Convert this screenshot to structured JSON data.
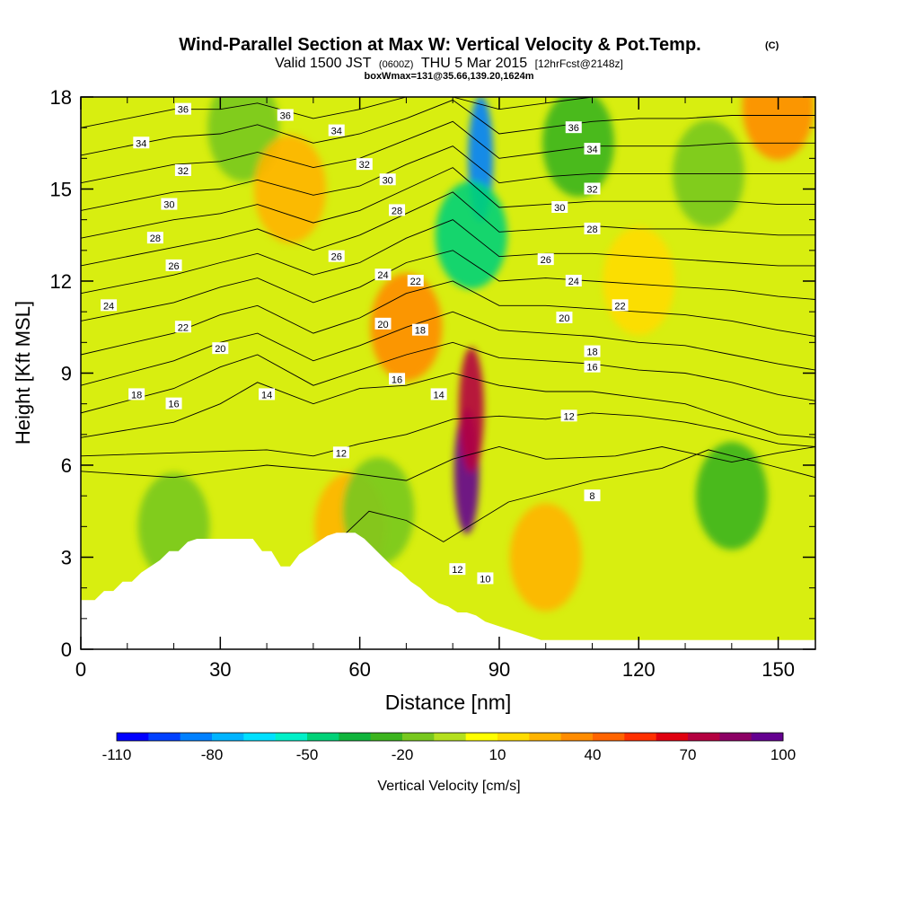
{
  "header": {
    "title": "Wind-Parallel Section at Max W: Vertical Velocity & Pot.Temp.",
    "copyright": "(C)",
    "valid_prefix": "Valid 1500 JST",
    "valid_utc": "(0600Z)",
    "valid_date": "THU 5 Mar 2015",
    "forecast": "[12hrFcst@2148z]",
    "box_info": "boxWmax=131@35.66,139.20,1624m"
  },
  "chart_data": {
    "type": "heatmap",
    "xlabel": "Distance [nm]",
    "ylabel": "Height [Kft MSL]",
    "xlim": [
      0,
      158
    ],
    "ylim": [
      0,
      18
    ],
    "x_ticks": [
      "0",
      "30",
      "60",
      "90",
      "120",
      "150"
    ],
    "y_ticks": [
      "0",
      "3",
      "6",
      "9",
      "12",
      "15",
      "18"
    ],
    "grid": false,
    "colorbar": {
      "label": "Vertical Velocity [cm/s]",
      "tick_labels": [
        "-110",
        "-80",
        "-50",
        "-20",
        "10",
        "40",
        "70",
        "100"
      ],
      "colors": [
        "#0000ff",
        "#0040ff",
        "#0080ff",
        "#00b4ff",
        "#00e0ff",
        "#00f0c8",
        "#00d278",
        "#10b43c",
        "#3cb41e",
        "#78c81e",
        "#b4e01e",
        "#ffff00",
        "#ffdc00",
        "#ffb400",
        "#ff8c00",
        "#ff6400",
        "#ff3000",
        "#e00010",
        "#b40040",
        "#8c0064",
        "#640090"
      ]
    },
    "velocity_field": [
      {
        "x": 83,
        "y": 5.8,
        "w": 120
      },
      {
        "x": 84,
        "y": 7.8,
        "w": 70
      },
      {
        "x": 70,
        "y": 10.5,
        "w": 32
      },
      {
        "x": 35,
        "y": 17.0,
        "w": -20
      },
      {
        "x": 86,
        "y": 16.0,
        "w": -90
      },
      {
        "x": 84,
        "y": 13.5,
        "w": -45
      },
      {
        "x": 107,
        "y": 16.5,
        "w": -25
      },
      {
        "x": 140,
        "y": 5.0,
        "w": -25
      },
      {
        "x": 135,
        "y": 15.5,
        "w": -15
      },
      {
        "x": 45,
        "y": 15.0,
        "w": 25
      },
      {
        "x": 100,
        "y": 3.0,
        "w": 25
      },
      {
        "x": 58,
        "y": 4.0,
        "w": 20
      },
      {
        "x": 64,
        "y": 4.5,
        "w": -15
      },
      {
        "x": 20,
        "y": 4.0,
        "w": -15
      },
      {
        "x": 150,
        "y": 17.7,
        "w": 30
      },
      {
        "x": 120,
        "y": 12.0,
        "w": 10
      }
    ],
    "theta_contours": [
      {
        "value": 8,
        "x": [
          53,
          62,
          70,
          78,
          92,
          110,
          125,
          135,
          148,
          158
        ],
        "y": [
          3.2,
          4.5,
          4.2,
          3.5,
          4.8,
          5.5,
          5.9,
          6.5,
          6.0,
          5.6
        ],
        "label": "8",
        "label_at": [
          110,
          5.0
        ]
      },
      {
        "value": 10,
        "x": [
          0,
          20,
          40,
          55,
          70,
          80,
          90,
          100,
          115,
          125,
          140,
          150,
          158
        ],
        "y": [
          5.8,
          5.6,
          6.0,
          5.8,
          5.5,
          6.2,
          6.6,
          6.2,
          6.3,
          6.6,
          6.1,
          6.4,
          6.6
        ],
        "label": "10",
        "label_at": [
          87,
          2.3
        ]
      },
      {
        "value": 12,
        "x": [
          0,
          20,
          40,
          50,
          60,
          70,
          80,
          90,
          100,
          110,
          120,
          130,
          140,
          150,
          158
        ],
        "y": [
          6.3,
          6.4,
          6.5,
          6.3,
          6.7,
          7.0,
          7.5,
          7.6,
          7.5,
          7.7,
          7.6,
          7.4,
          7.1,
          6.7,
          6.6
        ],
        "label": "12",
        "label_at": [
          105,
          7.6
        ]
      },
      {
        "value": 14,
        "x": [
          0,
          20,
          30,
          38,
          50,
          60,
          70,
          80,
          90,
          100,
          110,
          120,
          130,
          140,
          150,
          158
        ],
        "y": [
          6.9,
          7.4,
          8.0,
          8.7,
          8.0,
          8.5,
          8.6,
          9.0,
          8.6,
          8.4,
          8.4,
          8.2,
          8.0,
          7.5,
          7.0,
          6.9
        ],
        "label": "14",
        "label_at": [
          40,
          8.3
        ]
      },
      {
        "value": 16,
        "x": [
          0,
          20,
          30,
          38,
          50,
          60,
          70,
          80,
          90,
          100,
          110,
          120,
          130,
          140,
          150,
          158
        ],
        "y": [
          7.7,
          8.5,
          9.2,
          9.6,
          8.6,
          9.1,
          9.6,
          10.0,
          9.5,
          9.4,
          9.3,
          9.1,
          9.0,
          8.7,
          8.3,
          8.1
        ],
        "label": "16",
        "label_at": [
          110,
          9.2
        ]
      },
      {
        "value": 18,
        "x": [
          0,
          20,
          30,
          38,
          50,
          60,
          70,
          80,
          90,
          100,
          110,
          120,
          130,
          140,
          150,
          158
        ],
        "y": [
          8.6,
          9.4,
          10.0,
          10.3,
          9.4,
          9.9,
          10.5,
          11.0,
          10.4,
          10.3,
          10.2,
          10.0,
          9.9,
          9.6,
          9.3,
          9.1
        ],
        "label": "18",
        "label_at": [
          12,
          8.3
        ]
      },
      {
        "value": 20,
        "x": [
          0,
          20,
          30,
          38,
          50,
          60,
          70,
          80,
          90,
          100,
          110,
          120,
          130,
          140,
          150,
          158
        ],
        "y": [
          9.6,
          10.3,
          10.9,
          11.2,
          10.3,
          10.8,
          11.6,
          12.0,
          11.2,
          11.2,
          11.1,
          11.0,
          10.9,
          10.7,
          10.4,
          10.2
        ],
        "label": "20",
        "label_at": [
          30,
          9.8
        ]
      },
      {
        "value": 22,
        "x": [
          0,
          20,
          30,
          38,
          50,
          60,
          70,
          80,
          90,
          100,
          110,
          120,
          130,
          140,
          150,
          158
        ],
        "y": [
          10.7,
          11.3,
          11.8,
          12.1,
          11.3,
          11.8,
          12.6,
          13.0,
          12.0,
          12.1,
          12.0,
          11.9,
          11.8,
          11.7,
          11.5,
          11.4
        ],
        "label": "22",
        "label_at": [
          22,
          10.5
        ]
      },
      {
        "value": 24,
        "x": [
          0,
          20,
          30,
          38,
          50,
          60,
          70,
          80,
          90,
          100,
          110,
          120,
          130,
          140,
          150,
          158
        ],
        "y": [
          11.6,
          12.2,
          12.6,
          12.9,
          12.2,
          12.6,
          13.4,
          14.0,
          12.8,
          12.9,
          12.9,
          12.8,
          12.7,
          12.6,
          12.5,
          12.5
        ],
        "label": "24",
        "label_at": [
          6,
          11.2
        ]
      },
      {
        "value": 26,
        "x": [
          0,
          20,
          30,
          38,
          50,
          60,
          70,
          80,
          90,
          100,
          110,
          120,
          130,
          140,
          150,
          158
        ],
        "y": [
          12.5,
          13.1,
          13.4,
          13.7,
          13.0,
          13.5,
          14.2,
          14.9,
          13.6,
          13.7,
          13.8,
          13.7,
          13.7,
          13.6,
          13.5,
          13.5
        ],
        "label": "26",
        "label_at": [
          55,
          12.8
        ]
      },
      {
        "value": 28,
        "x": [
          0,
          20,
          30,
          38,
          50,
          60,
          70,
          80,
          90,
          100,
          110,
          120,
          130,
          140,
          150,
          158
        ],
        "y": [
          13.4,
          14.0,
          14.2,
          14.5,
          13.9,
          14.3,
          15.0,
          15.7,
          14.4,
          14.5,
          14.6,
          14.6,
          14.6,
          14.6,
          14.5,
          14.5
        ],
        "label": "28",
        "label_at": [
          110,
          13.7
        ]
      },
      {
        "value": 30,
        "x": [
          0,
          20,
          30,
          38,
          50,
          60,
          70,
          80,
          90,
          100,
          110,
          120,
          130,
          140,
          150,
          158
        ],
        "y": [
          14.3,
          14.9,
          15.0,
          15.3,
          14.8,
          15.1,
          15.8,
          16.4,
          15.2,
          15.4,
          15.5,
          15.5,
          15.5,
          15.5,
          15.5,
          15.5
        ],
        "label": "30",
        "label_at": [
          66,
          15.3
        ]
      },
      {
        "value": 32,
        "x": [
          0,
          20,
          30,
          38,
          50,
          60,
          70,
          80,
          90,
          100,
          110,
          120,
          130,
          140,
          150,
          158
        ],
        "y": [
          15.2,
          15.8,
          15.9,
          16.2,
          15.7,
          16.0,
          16.6,
          17.2,
          16.0,
          16.2,
          16.4,
          16.4,
          16.4,
          16.5,
          16.5,
          16.5
        ],
        "label": "32",
        "label_at": [
          110,
          15.0
        ]
      },
      {
        "value": 34,
        "x": [
          0,
          20,
          30,
          38,
          50,
          60,
          70,
          80,
          90,
          100,
          110,
          120,
          130,
          140,
          150,
          158
        ],
        "y": [
          16.1,
          16.7,
          16.8,
          17.1,
          16.5,
          16.8,
          17.3,
          17.9,
          16.8,
          17.0,
          17.2,
          17.3,
          17.3,
          17.4,
          17.4,
          17.4
        ],
        "label": "34",
        "label_at": [
          110,
          16.3
        ]
      },
      {
        "value": 36,
        "x": [
          0,
          20,
          30,
          38,
          50,
          60,
          70,
          80,
          90,
          100,
          110,
          120,
          130,
          140,
          150,
          158
        ],
        "y": [
          17.0,
          17.6,
          17.6,
          17.8,
          17.3,
          17.6,
          18.0,
          18.0,
          17.6,
          17.8,
          18.0,
          18.0,
          18.0,
          18.0,
          18.0,
          18.0
        ],
        "label": "36",
        "label_at": [
          22,
          17.6
        ]
      }
    ],
    "extra_theta_labels": [
      {
        "text": "12",
        "x": 56,
        "y": 6.4
      },
      {
        "text": "12",
        "x": 81,
        "y": 2.6
      },
      {
        "text": "16",
        "x": 20,
        "y": 8.0
      },
      {
        "text": "16",
        "x": 68,
        "y": 8.8
      },
      {
        "text": "14",
        "x": 77,
        "y": 8.3
      },
      {
        "text": "18",
        "x": 73,
        "y": 10.4
      },
      {
        "text": "18",
        "x": 110,
        "y": 9.7
      },
      {
        "text": "20",
        "x": 65,
        "y": 10.6
      },
      {
        "text": "20",
        "x": 104,
        "y": 10.8
      },
      {
        "text": "22",
        "x": 72,
        "y": 12.0
      },
      {
        "text": "22",
        "x": 116,
        "y": 11.2
      },
      {
        "text": "24",
        "x": 65,
        "y": 12.2
      },
      {
        "text": "24",
        "x": 106,
        "y": 12.0
      },
      {
        "text": "26",
        "x": 20,
        "y": 12.5
      },
      {
        "text": "26",
        "x": 100,
        "y": 12.7
      },
      {
        "text": "28",
        "x": 16,
        "y": 13.4
      },
      {
        "text": "28",
        "x": 68,
        "y": 14.3
      },
      {
        "text": "30",
        "x": 19,
        "y": 14.5
      },
      {
        "text": "30",
        "x": 103,
        "y": 14.4
      },
      {
        "text": "32",
        "x": 22,
        "y": 15.6
      },
      {
        "text": "32",
        "x": 61,
        "y": 15.8
      },
      {
        "text": "34",
        "x": 13,
        "y": 16.5
      },
      {
        "text": "34",
        "x": 55,
        "y": 16.9
      },
      {
        "text": "36",
        "x": 44,
        "y": 17.4
      },
      {
        "text": "36",
        "x": 106,
        "y": 17.0
      }
    ],
    "terrain_kft": {
      "x": [
        0,
        3,
        5,
        7,
        9,
        11,
        13,
        15,
        17,
        19,
        21,
        23,
        25,
        27,
        29,
        31,
        33,
        35,
        37,
        39,
        41,
        43,
        45,
        47,
        49,
        51,
        53,
        55,
        57,
        59,
        61,
        63,
        65,
        67,
        69,
        71,
        73,
        75,
        77,
        79,
        81,
        83,
        85,
        87,
        89,
        91,
        93,
        95,
        97,
        99,
        158
      ],
      "y": [
        1.6,
        1.6,
        1.9,
        1.9,
        2.2,
        2.2,
        2.5,
        2.7,
        2.9,
        3.2,
        3.2,
        3.5,
        3.6,
        3.6,
        3.6,
        3.6,
        3.6,
        3.6,
        3.6,
        3.2,
        3.2,
        2.7,
        2.7,
        3.1,
        3.3,
        3.5,
        3.7,
        3.8,
        3.8,
        3.8,
        3.6,
        3.3,
        3.0,
        2.7,
        2.5,
        2.2,
        2.0,
        1.7,
        1.5,
        1.4,
        1.2,
        1.2,
        1.1,
        0.9,
        0.8,
        0.7,
        0.6,
        0.5,
        0.4,
        0.3,
        0.3
      ]
    }
  }
}
